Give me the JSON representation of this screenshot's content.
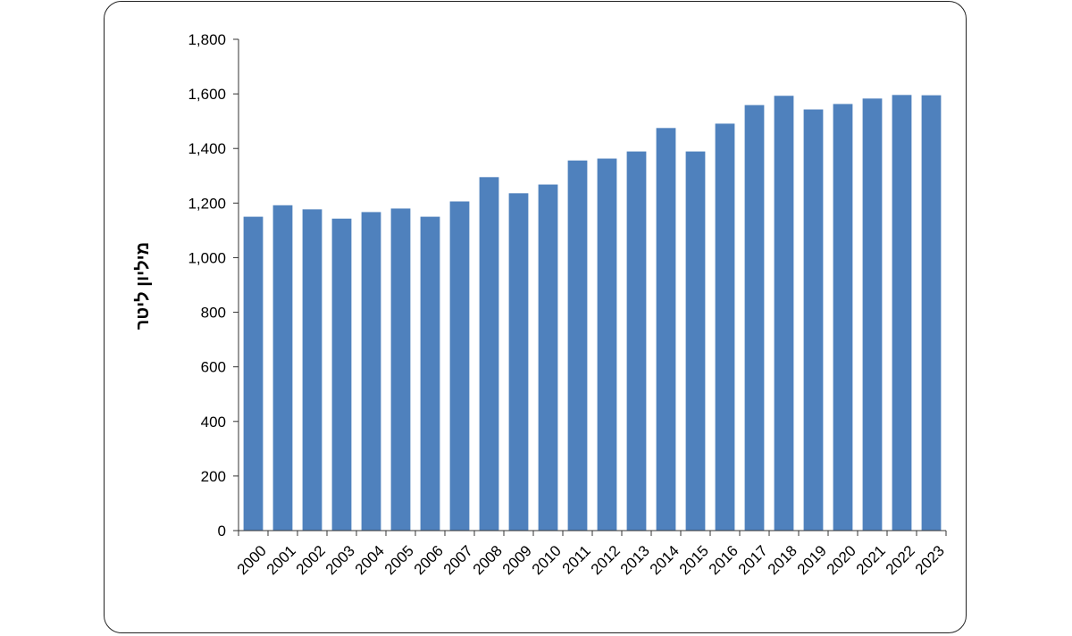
{
  "chart_data": {
    "type": "bar",
    "title": "",
    "xlabel": "",
    "ylabel": "מיליון ליטר",
    "ylim": [
      0,
      1800
    ],
    "yticks": [
      0,
      200,
      400,
      600,
      800,
      1000,
      1200,
      1400,
      1600,
      1800
    ],
    "ytick_labels": [
      "0",
      "200",
      "400",
      "600",
      "800",
      "1,000",
      "1,200",
      "1,400",
      "1,600",
      "1,800"
    ],
    "grid": false,
    "legend": "none",
    "bar_color": "#4F81BD",
    "categories": [
      "2000",
      "2001",
      "2002",
      "2003",
      "2004",
      "2005",
      "2006",
      "2007",
      "2008",
      "2009",
      "2010",
      "2011",
      "2012",
      "2013",
      "2014",
      "2015",
      "2016",
      "2017",
      "2018",
      "2019",
      "2020",
      "2021",
      "2022",
      "2023"
    ],
    "values": [
      1150,
      1192,
      1177,
      1143,
      1167,
      1180,
      1150,
      1206,
      1295,
      1236,
      1268,
      1356,
      1363,
      1389,
      1475,
      1389,
      1491,
      1559,
      1593,
      1543,
      1563,
      1583,
      1596,
      1595
    ]
  }
}
